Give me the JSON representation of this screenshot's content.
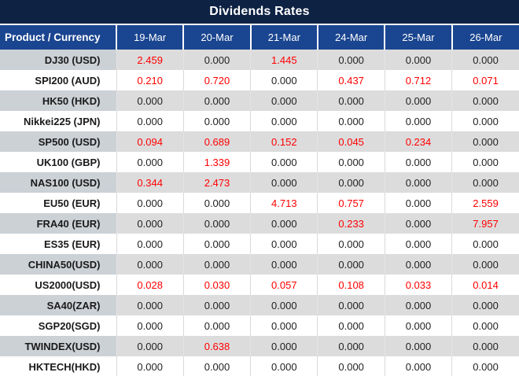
{
  "title": "Dividends Rates",
  "colors": {
    "title_bg": "#0e2243",
    "header_bg": "#1a4590",
    "header_text": "#ffffff",
    "stripe_row_bg": "#dcdcdd",
    "stripe_label_bg": "#ccd1d6",
    "value_text": "#1f1f1f",
    "nonzero_value_text": "#ff0000"
  },
  "table": {
    "product_header": "Product / Currency",
    "date_headers": [
      "19-Mar",
      "20-Mar",
      "21-Mar",
      "24-Mar",
      "25-Mar",
      "26-Mar"
    ],
    "rows": [
      {
        "product": "DJ30 (USD)",
        "values": [
          "2.459",
          "0.000",
          "1.445",
          "0.000",
          "0.000",
          "0.000"
        ]
      },
      {
        "product": "SPI200 (AUD)",
        "values": [
          "0.210",
          "0.720",
          "0.000",
          "0.437",
          "0.712",
          "0.071"
        ]
      },
      {
        "product": "HK50 (HKD)",
        "values": [
          "0.000",
          "0.000",
          "0.000",
          "0.000",
          "0.000",
          "0.000"
        ]
      },
      {
        "product": "Nikkei225 (JPN)",
        "values": [
          "0.000",
          "0.000",
          "0.000",
          "0.000",
          "0.000",
          "0.000"
        ]
      },
      {
        "product": "SP500 (USD)",
        "values": [
          "0.094",
          "0.689",
          "0.152",
          "0.045",
          "0.234",
          "0.000"
        ]
      },
      {
        "product": "UK100 (GBP)",
        "values": [
          "0.000",
          "1.339",
          "0.000",
          "0.000",
          "0.000",
          "0.000"
        ]
      },
      {
        "product": "NAS100 (USD)",
        "values": [
          "0.344",
          "2.473",
          "0.000",
          "0.000",
          "0.000",
          "0.000"
        ]
      },
      {
        "product": "EU50 (EUR)",
        "values": [
          "0.000",
          "0.000",
          "4.713",
          "0.757",
          "0.000",
          "2.559"
        ]
      },
      {
        "product": "FRA40 (EUR)",
        "values": [
          "0.000",
          "0.000",
          "0.000",
          "0.233",
          "0.000",
          "7.957"
        ]
      },
      {
        "product": "ES35 (EUR)",
        "values": [
          "0.000",
          "0.000",
          "0.000",
          "0.000",
          "0.000",
          "0.000"
        ]
      },
      {
        "product": "CHINA50(USD)",
        "values": [
          "0.000",
          "0.000",
          "0.000",
          "0.000",
          "0.000",
          "0.000"
        ]
      },
      {
        "product": "US2000(USD)",
        "values": [
          "0.028",
          "0.030",
          "0.057",
          "0.108",
          "0.033",
          "0.014"
        ]
      },
      {
        "product": "SA40(ZAR)",
        "values": [
          "0.000",
          "0.000",
          "0.000",
          "0.000",
          "0.000",
          "0.000"
        ]
      },
      {
        "product": "SGP20(SGD)",
        "values": [
          "0.000",
          "0.000",
          "0.000",
          "0.000",
          "0.000",
          "0.000"
        ]
      },
      {
        "product": "TWINDEX(USD)",
        "values": [
          "0.000",
          "0.638",
          "0.000",
          "0.000",
          "0.000",
          "0.000"
        ]
      },
      {
        "product": "HKTECH(HKD)",
        "values": [
          "0.000",
          "0.000",
          "0.000",
          "0.000",
          "0.000",
          "0.000"
        ]
      }
    ]
  }
}
